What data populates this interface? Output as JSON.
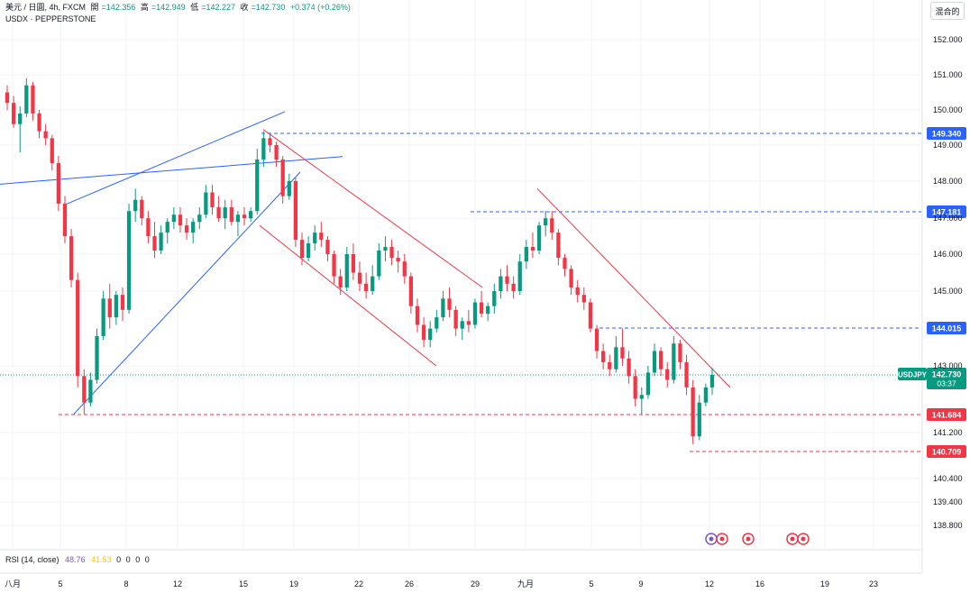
{
  "header": {
    "title": "美元 / 日圓, 4h, FXCM",
    "open_label": "開",
    "open": "=142.356",
    "high_label": "高",
    "high": "=142.949",
    "low_label": "低",
    "low": "=142.227",
    "close_label": "收",
    "close": "=142.730",
    "change": "+0.374 (+0.26%)",
    "symbol2": "USDX · PEPPERSTONE"
  },
  "mode_button": "混合的",
  "rsi": {
    "label": "RSI (14, close)",
    "v1": "48.76",
    "v2": "41.53",
    "z": [
      "0",
      "0",
      "0",
      "0"
    ]
  },
  "colors": {
    "up": "#089981",
    "down": "#f23645",
    "trend_blue": "#2962ff",
    "trend_red": "#f23645",
    "price_line": "#089981"
  },
  "chart_data": {
    "type": "candlestick",
    "symbol": "USDJPY",
    "timeframe": "4h",
    "y_ticks": [
      "152.000",
      "151.000",
      "150.000",
      "149.000",
      "148.000",
      "147.000",
      "146.000",
      "145.000",
      "143.000",
      "141.200",
      "140.400",
      "139.400",
      "138.800"
    ],
    "x_ticks": [
      "八月",
      "5",
      "8",
      "12",
      "15",
      "19",
      "22",
      "26",
      "29",
      "九月",
      "5",
      "9",
      "12",
      "16",
      "19",
      "23"
    ],
    "current_price": {
      "symbol": "USDJPY",
      "value": "142.730",
      "countdown": "03:37"
    },
    "horizontal_levels": [
      {
        "value": "149.340",
        "color": "#2962ff"
      },
      {
        "value": "147.181",
        "color": "#2962ff"
      },
      {
        "value": "144.015",
        "color": "#2962ff"
      },
      {
        "value": "141.684",
        "color": "#f23645"
      },
      {
        "value": "140.709",
        "color": "#f23645"
      }
    ],
    "trendlines": [
      {
        "color": "#2962ff",
        "points": [
          [
            0,
            147.92
          ],
          [
            380,
            148.68
          ]
        ]
      },
      {
        "color": "#2962ff",
        "points": [
          [
            72,
            147.37
          ],
          [
            316,
            149.95
          ]
        ]
      },
      {
        "color": "#2962ff",
        "points": [
          [
            82,
            141.7
          ],
          [
            333,
            148.25
          ]
        ]
      },
      {
        "color": "#f23645",
        "points": [
          [
            292,
            149.45
          ],
          [
            535,
            145.1
          ]
        ]
      },
      {
        "color": "#f23645",
        "points": [
          [
            288,
            146.8
          ],
          [
            484,
            143.0
          ]
        ]
      },
      {
        "color": "#f23645",
        "points": [
          [
            596,
            147.8
          ],
          [
            810,
            142.4
          ]
        ]
      }
    ],
    "candles": [
      [
        150.5,
        150.7,
        150.0,
        150.2
      ],
      [
        150.2,
        150.4,
        149.5,
        149.6
      ],
      [
        149.6,
        150.1,
        148.8,
        149.9
      ],
      [
        149.9,
        150.9,
        149.8,
        150.7
      ],
      [
        150.7,
        150.8,
        149.7,
        149.9
      ],
      [
        149.9,
        150.0,
        149.2,
        149.4
      ],
      [
        149.4,
        149.6,
        149.0,
        149.2
      ],
      [
        149.2,
        149.3,
        148.3,
        148.5
      ],
      [
        148.5,
        148.7,
        147.2,
        147.4
      ],
      [
        147.4,
        147.6,
        146.3,
        146.5
      ],
      [
        146.5,
        146.7,
        145.1,
        145.3
      ],
      [
        145.3,
        145.5,
        142.4,
        142.7
      ],
      [
        142.7,
        142.9,
        141.7,
        142.0
      ],
      [
        142.0,
        142.8,
        141.9,
        142.6
      ],
      [
        142.6,
        144.0,
        142.5,
        143.8
      ],
      [
        143.8,
        145.0,
        143.7,
        144.8
      ],
      [
        144.8,
        145.2,
        144.0,
        144.3
      ],
      [
        144.3,
        145.0,
        144.1,
        144.9
      ],
      [
        144.9,
        145.1,
        144.2,
        144.5
      ],
      [
        144.5,
        147.4,
        144.4,
        147.2
      ],
      [
        147.2,
        147.8,
        146.9,
        147.5
      ],
      [
        147.5,
        147.6,
        146.8,
        147.0
      ],
      [
        147.0,
        147.2,
        146.3,
        146.5
      ],
      [
        146.5,
        146.9,
        145.9,
        146.1
      ],
      [
        146.1,
        146.8,
        146.0,
        146.6
      ],
      [
        146.6,
        147.0,
        146.3,
        146.9
      ],
      [
        146.9,
        147.3,
        146.7,
        147.1
      ],
      [
        147.1,
        147.3,
        146.6,
        146.8
      ],
      [
        146.8,
        147.0,
        146.4,
        146.6
      ],
      [
        146.6,
        147.0,
        146.3,
        146.9
      ],
      [
        146.9,
        147.3,
        146.7,
        147.1
      ],
      [
        147.1,
        147.9,
        147.0,
        147.7
      ],
      [
        147.7,
        147.9,
        147.1,
        147.3
      ],
      [
        147.3,
        147.6,
        146.9,
        147.0
      ],
      [
        147.0,
        147.5,
        146.7,
        147.3
      ],
      [
        147.3,
        147.5,
        146.8,
        146.9
      ],
      [
        146.9,
        147.2,
        146.5,
        147.1
      ],
      [
        147.1,
        147.3,
        146.8,
        147.0
      ],
      [
        147.0,
        147.3,
        146.9,
        147.2
      ],
      [
        147.2,
        148.9,
        147.1,
        148.6
      ],
      [
        148.6,
        149.4,
        148.4,
        149.2
      ],
      [
        149.2,
        149.3,
        148.8,
        149.0
      ],
      [
        149.0,
        149.1,
        148.4,
        148.6
      ],
      [
        148.6,
        148.7,
        147.4,
        147.6
      ],
      [
        147.6,
        148.2,
        147.5,
        148.0
      ],
      [
        148.0,
        148.1,
        146.2,
        146.4
      ],
      [
        146.4,
        146.6,
        145.7,
        145.9
      ],
      [
        145.9,
        146.5,
        145.8,
        146.3
      ],
      [
        146.3,
        146.8,
        146.1,
        146.6
      ],
      [
        146.6,
        146.9,
        146.2,
        146.4
      ],
      [
        146.4,
        146.5,
        145.8,
        146.0
      ],
      [
        146.0,
        146.1,
        145.2,
        145.4
      ],
      [
        145.4,
        145.6,
        144.9,
        145.1
      ],
      [
        145.1,
        146.2,
        145.0,
        146.0
      ],
      [
        146.0,
        146.3,
        145.3,
        145.5
      ],
      [
        145.5,
        145.8,
        145.0,
        145.2
      ],
      [
        145.2,
        145.5,
        144.8,
        145.0
      ],
      [
        145.0,
        145.7,
        144.9,
        145.4
      ],
      [
        145.4,
        146.3,
        145.3,
        146.1
      ],
      [
        146.1,
        146.5,
        145.8,
        146.2
      ],
      [
        146.2,
        146.4,
        145.7,
        145.9
      ],
      [
        145.9,
        146.1,
        145.5,
        145.8
      ],
      [
        145.8,
        146.0,
        145.2,
        145.4
      ],
      [
        145.4,
        145.5,
        144.4,
        144.6
      ],
      [
        144.6,
        144.8,
        143.9,
        144.1
      ],
      [
        144.1,
        144.3,
        143.5,
        143.7
      ],
      [
        143.7,
        144.2,
        143.5,
        144.0
      ],
      [
        144.0,
        144.5,
        143.9,
        144.3
      ],
      [
        144.3,
        145.0,
        144.2,
        144.8
      ],
      [
        144.8,
        145.1,
        144.3,
        144.5
      ],
      [
        144.5,
        144.6,
        143.8,
        144.0
      ],
      [
        144.0,
        144.3,
        143.7,
        144.2
      ],
      [
        144.2,
        144.5,
        143.9,
        144.1
      ],
      [
        144.1,
        144.8,
        144.0,
        144.7
      ],
      [
        144.7,
        145.0,
        144.3,
        144.4
      ],
      [
        144.4,
        144.7,
        144.2,
        144.6
      ],
      [
        144.6,
        145.2,
        144.4,
        145.0
      ],
      [
        145.0,
        145.6,
        144.8,
        145.4
      ],
      [
        145.4,
        145.7,
        145.0,
        145.2
      ],
      [
        145.2,
        145.4,
        144.8,
        145.0
      ],
      [
        145.0,
        146.0,
        144.9,
        145.8
      ],
      [
        145.8,
        146.4,
        145.6,
        146.2
      ],
      [
        146.2,
        146.6,
        145.9,
        146.1
      ],
      [
        146.1,
        146.9,
        146.0,
        146.8
      ],
      [
        146.8,
        147.2,
        146.5,
        147.0
      ],
      [
        147.0,
        147.2,
        146.4,
        146.6
      ],
      [
        146.6,
        146.7,
        145.7,
        145.9
      ],
      [
        145.9,
        146.0,
        145.4,
        145.6
      ],
      [
        145.6,
        145.7,
        144.9,
        145.1
      ],
      [
        145.1,
        145.3,
        144.7,
        144.9
      ],
      [
        144.9,
        145.1,
        144.5,
        144.7
      ],
      [
        144.7,
        144.8,
        143.9,
        144.0
      ],
      [
        144.0,
        144.1,
        143.2,
        143.4
      ],
      [
        143.4,
        143.6,
        142.9,
        143.1
      ],
      [
        143.1,
        143.3,
        142.7,
        142.9
      ],
      [
        142.9,
        143.8,
        142.8,
        143.5
      ],
      [
        143.5,
        144.0,
        143.0,
        143.2
      ],
      [
        143.2,
        143.4,
        142.5,
        142.7
      ],
      [
        142.7,
        142.9,
        141.9,
        142.1
      ],
      [
        142.1,
        142.4,
        141.7,
        142.2
      ],
      [
        142.2,
        143.0,
        142.1,
        142.8
      ],
      [
        142.8,
        143.6,
        142.7,
        143.4
      ],
      [
        143.4,
        143.5,
        142.7,
        142.9
      ],
      [
        142.9,
        143.1,
        142.4,
        142.6
      ],
      [
        142.6,
        143.8,
        142.5,
        143.6
      ],
      [
        143.6,
        143.7,
        142.9,
        143.1
      ],
      [
        143.1,
        143.3,
        142.2,
        142.4
      ],
      [
        142.4,
        142.6,
        140.9,
        141.1
      ],
      [
        141.1,
        142.2,
        141.0,
        142.0
      ],
      [
        142.0,
        142.5,
        141.9,
        142.4
      ],
      [
        142.4,
        142.95,
        142.2,
        142.73
      ]
    ]
  }
}
